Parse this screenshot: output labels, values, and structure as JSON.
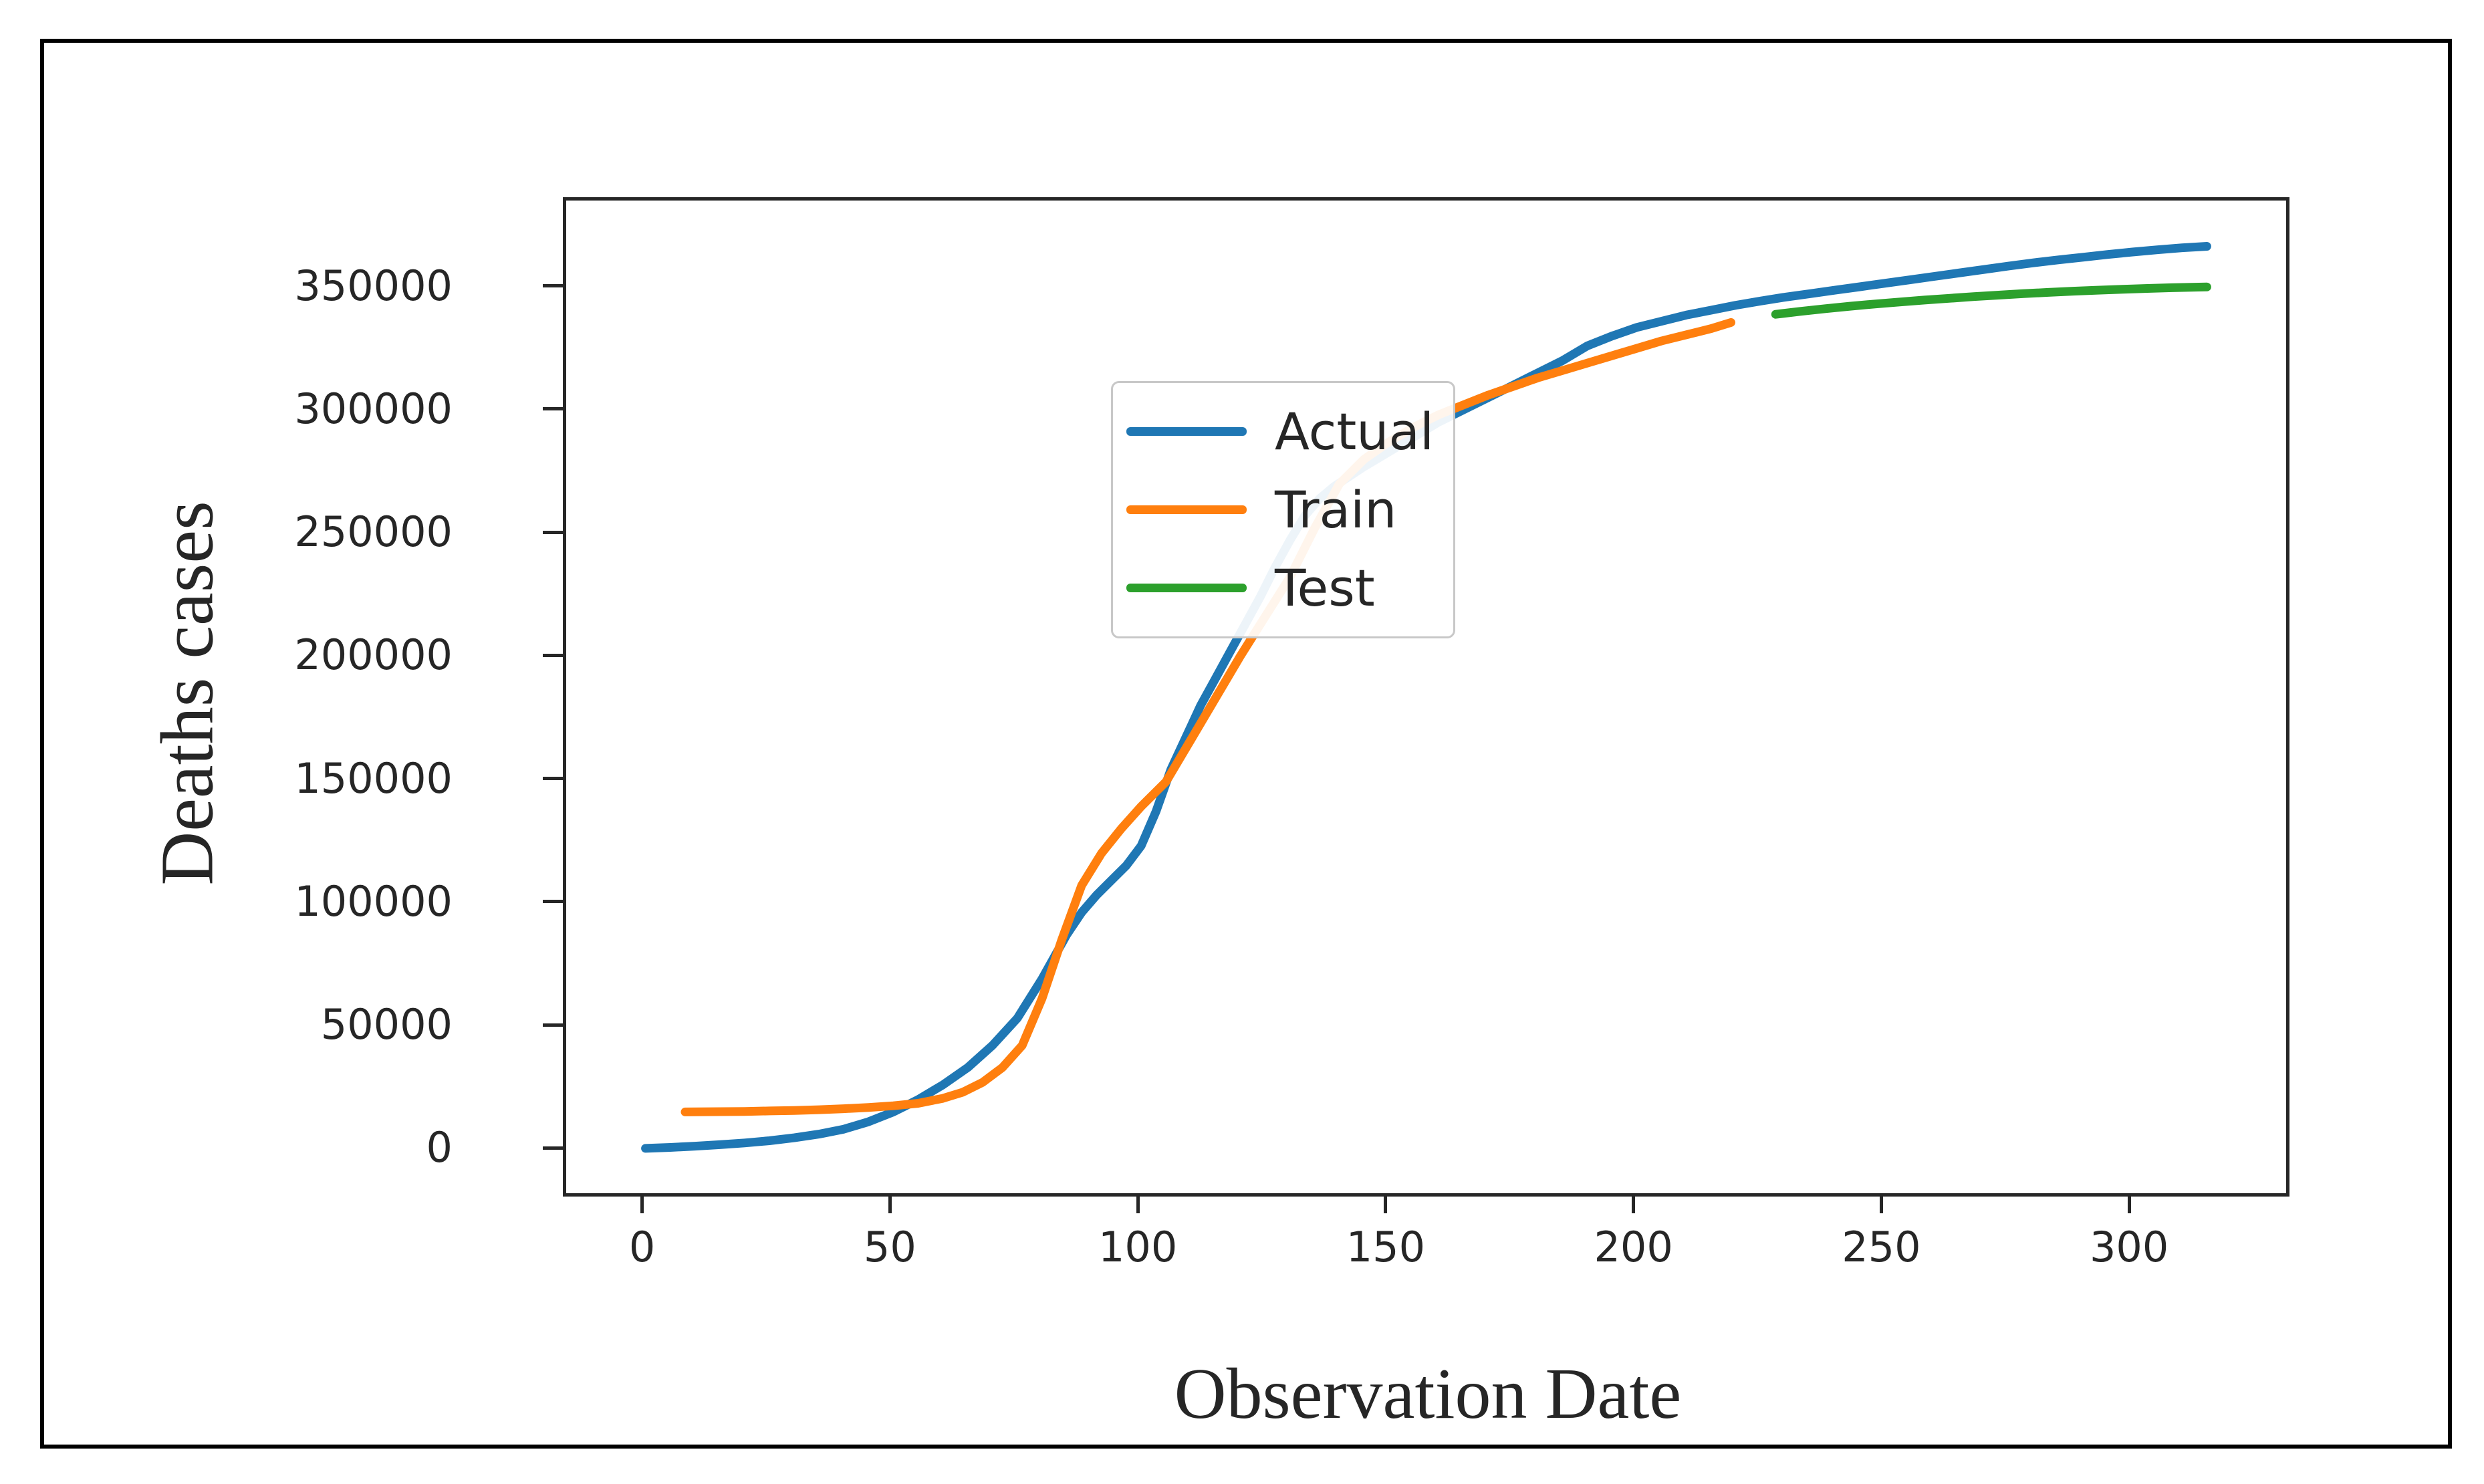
{
  "page": {
    "background": "#ffffff",
    "border_color": "#000000",
    "frame_color": "#262626"
  },
  "chart_data": {
    "type": "line",
    "title": "",
    "xlabel": "Observation Date",
    "ylabel": "Deaths cases",
    "xlim": [
      -16,
      331
    ],
    "ylim": [
      -17000,
      386000
    ],
    "x_ticks": [
      0,
      50,
      100,
      150,
      200,
      250,
      300
    ],
    "y_ticks": [
      0,
      50000,
      100000,
      150000,
      200000,
      250000,
      300000,
      350000
    ],
    "grid": false,
    "legend_position": "upper left",
    "series": [
      {
        "name": "Actual",
        "color": "#1f77b4",
        "x": [
          0,
          5,
          10,
          15,
          20,
          25,
          30,
          35,
          40,
          45,
          50,
          55,
          60,
          65,
          70,
          75,
          80,
          85,
          88,
          91,
          94,
          97,
          100,
          103,
          106,
          109,
          112,
          115,
          118,
          121,
          124,
          127,
          130,
          133,
          136,
          139,
          142,
          145,
          150,
          155,
          160,
          165,
          170,
          175,
          180,
          185,
          190,
          195,
          200,
          205,
          210,
          215,
          220,
          225,
          230,
          235,
          240,
          245,
          250,
          255,
          260,
          265,
          270,
          275,
          280,
          285,
          290,
          295,
          300,
          305,
          310,
          315
        ],
        "y": [
          1200,
          1600,
          2100,
          2700,
          3400,
          4300,
          5500,
          7000,
          9000,
          12000,
          16000,
          21000,
          27000,
          34000,
          43000,
          54000,
          70000,
          88000,
          97000,
          104000,
          110000,
          116000,
          124000,
          138000,
          155000,
          168000,
          181000,
          192000,
          203000,
          214000,
          225000,
          237000,
          248000,
          258000,
          265000,
          270000,
          274000,
          278000,
          284000,
          290000,
          296000,
          301000,
          306000,
          311000,
          316000,
          321000,
          327000,
          331000,
          334500,
          337000,
          339500,
          341500,
          343500,
          345200,
          346800,
          348200,
          349600,
          351000,
          352400,
          353800,
          355200,
          356600,
          358000,
          359400,
          360700,
          361900,
          363000,
          364100,
          365100,
          366000,
          366800,
          367400
        ]
      },
      {
        "name": "Train",
        "color": "#ff7f0e",
        "x": [
          8,
          15,
          20,
          25,
          30,
          35,
          40,
          45,
          50,
          55,
          60,
          64,
          68,
          72,
          76,
          80,
          84,
          88,
          92,
          96,
          100,
          105,
          110,
          115,
          120,
          125,
          130,
          135,
          140,
          145,
          150,
          155,
          160,
          165,
          170,
          175,
          180,
          185,
          190,
          195,
          200,
          205,
          210,
          215,
          219
        ],
        "y": [
          16000,
          16100,
          16200,
          16400,
          16600,
          16900,
          17300,
          17800,
          18500,
          19500,
          21500,
          24000,
          28000,
          34000,
          43000,
          62000,
          86000,
          108000,
          121000,
          131000,
          140000,
          150000,
          167000,
          184000,
          201000,
          217000,
          233000,
          253000,
          271000,
          281000,
          288000,
          294000,
          299000,
          303000,
          307000,
          310500,
          314000,
          317000,
          320000,
          323000,
          326000,
          329000,
          331500,
          334000,
          336500
        ]
      },
      {
        "name": "Test",
        "color": "#2ca02c",
        "x": [
          228,
          233,
          238,
          243,
          248,
          253,
          258,
          263,
          268,
          273,
          278,
          283,
          288,
          293,
          298,
          303,
          308,
          315
        ],
        "y": [
          339800,
          341000,
          342100,
          343100,
          344000,
          344800,
          345600,
          346300,
          347000,
          347600,
          348200,
          348700,
          349200,
          349600,
          350000,
          350300,
          350600,
          350900
        ]
      }
    ]
  },
  "layout_note": "line chart, no grid, outward ticks, legend upper-left"
}
